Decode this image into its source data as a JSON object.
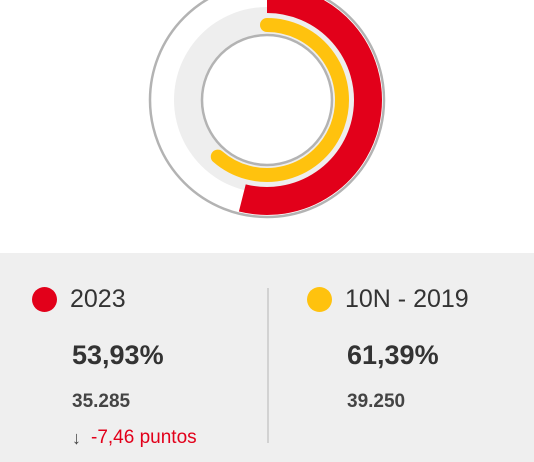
{
  "chart_data": {
    "type": "pie",
    "series": [
      {
        "name": "2023",
        "value": 53.93,
        "color": "#e2001a",
        "ring": "outer"
      },
      {
        "name": "10N - 2019",
        "value": 61.39,
        "color": "#ffc20e",
        "ring": "inner"
      }
    ],
    "track_color": "#eeeeee",
    "max": 100
  },
  "left": {
    "label": "2023",
    "color": "#e2001a",
    "percent": "53,93%",
    "votes": "35.285",
    "diff_arrow": "↓",
    "diff_text": "-7,46 puntos"
  },
  "right": {
    "label": "10N - 2019",
    "color": "#ffc20e",
    "percent": "61,39%",
    "votes": "39.250"
  }
}
